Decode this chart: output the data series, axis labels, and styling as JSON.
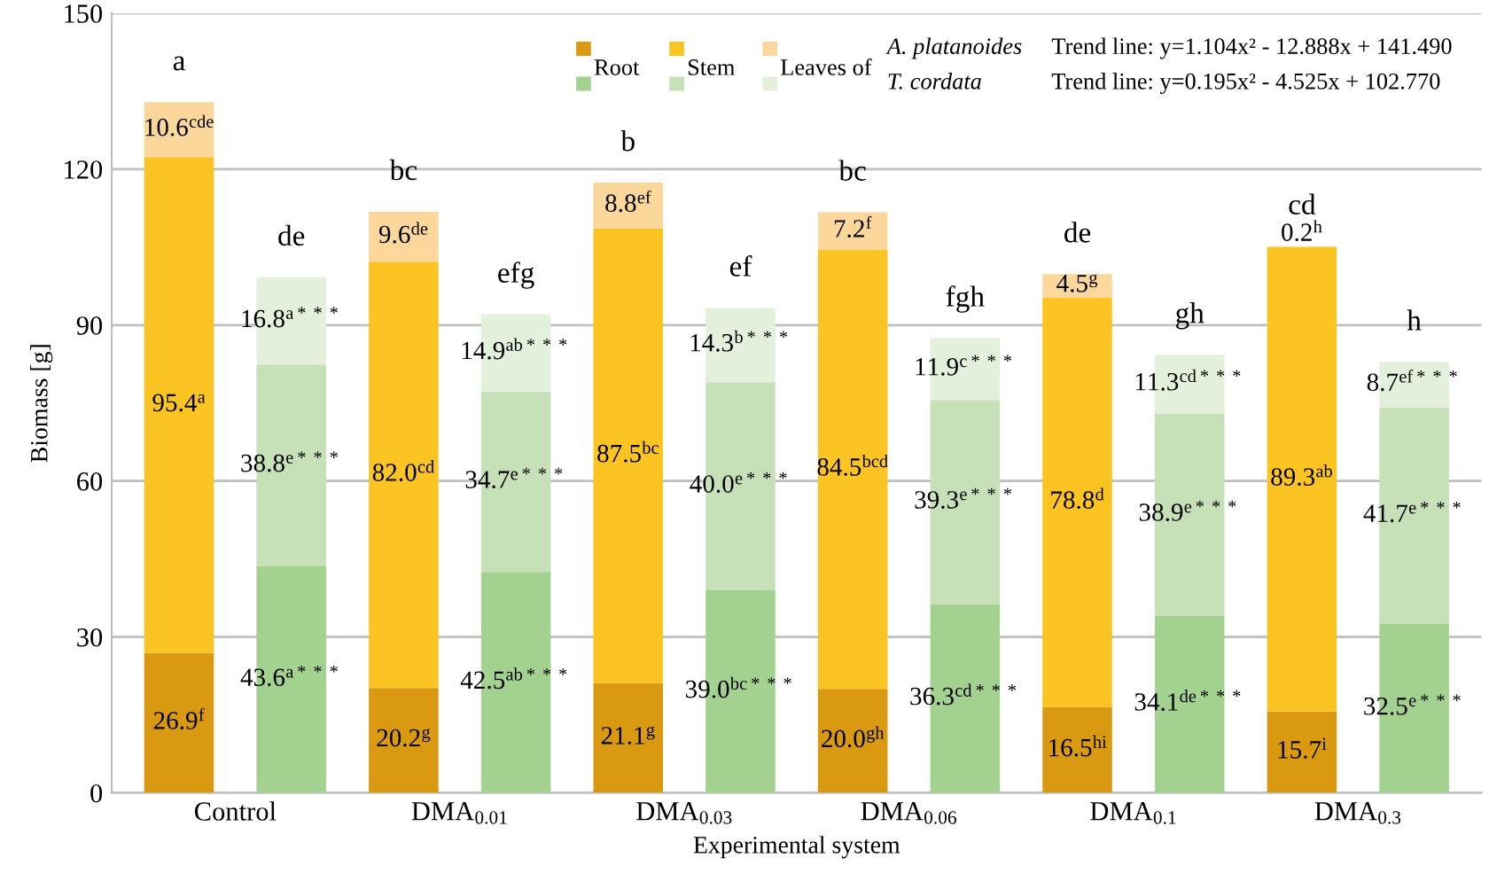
{
  "chart_data": {
    "type": "bar",
    "stacked": true,
    "xlabel": "Experimental system",
    "ylabel": "Biomass [g]",
    "categories": [
      "Control",
      null,
      "DMA$_{0.01}$",
      null,
      "DMA$_{0.03}$",
      null,
      "DMA$_{0.06}$",
      null,
      "DMA$_{0.1}$",
      null,
      "DMA$_{0.3}$",
      null
    ],
    "ylim": [
      0,
      150
    ],
    "yticks": [
      0,
      30,
      60,
      90,
      120,
      150
    ],
    "grid": "y",
    "legend": "top",
    "series": [
      {
        "name": "Root",
        "color": "#d99a12",
        "values": [
          26.9,
          null,
          20.2,
          null,
          21.1,
          null,
          20.0,
          null,
          16.5,
          null,
          15.7,
          null
        ],
        "value_labels": [
          "26.9$^{f}$",
          null,
          "20.2$^{g}$",
          null,
          "21.1$^{g}$",
          null,
          "20.0$^{gh}$",
          null,
          "16.5$^{hi}$",
          null,
          "15.7$^{i}$",
          null
        ]
      },
      {
        "name": "Stem",
        "color": "#fcc423",
        "values": [
          95.4,
          null,
          82.0,
          null,
          87.5,
          null,
          84.5,
          null,
          78.8,
          null,
          89.3,
          null
        ],
        "value_labels": [
          "95.4$^{a}$",
          null,
          "82.0$^{cd}$",
          null,
          "87.5$^{bc}$",
          null,
          "84.5$^{bcd}$",
          null,
          "78.8$^{d}$",
          null,
          "89.3$^{ab}$",
          null
        ]
      },
      {
        "name": "Leaves of",
        "color": "#fcd79c",
        "values": [
          10.6,
          null,
          9.6,
          null,
          8.8,
          null,
          7.2,
          null,
          4.5,
          null,
          0.2,
          null
        ],
        "value_labels": [
          "10.6$^{cde}$",
          null,
          "9.6$^{de}$",
          null,
          "8.8$^{ef}$",
          null,
          "7.2$^{f}$",
          null,
          "4.5$^{g}$",
          null,
          "0.2$^{h}$",
          null
        ]
      },
      {
        "color": "#a3d18f",
        "values": [
          null,
          43.6,
          null,
          42.5,
          null,
          39.0,
          null,
          36.3,
          null,
          34.1,
          null,
          32.5
        ],
        "value_labels": [
          null,
          "43.6$^{a***}$",
          null,
          "42.5$^{ab***}$",
          null,
          "39.0$^{bc***}$",
          null,
          "36.3$^{cd***}$",
          null,
          "34.1$^{de***}$",
          null,
          "32.5$^{e***}$"
        ]
      },
      {
        "color": "#c6e0b8",
        "values": [
          null,
          38.8,
          null,
          34.7,
          null,
          40.0,
          null,
          39.3,
          null,
          38.9,
          null,
          41.7
        ],
        "value_labels": [
          null,
          "38.8$^{e***}$",
          null,
          "34.7$^{e***}$",
          null,
          "40.0$^{e***}$",
          null,
          "39.3$^{e***}$",
          null,
          "38.9$^{e***}$",
          null,
          "41.7$^{e***}$"
        ]
      },
      {
        "color": "#e3f0dc",
        "values": [
          null,
          16.8,
          null,
          14.9,
          null,
          14.3,
          null,
          11.9,
          null,
          11.3,
          null,
          8.7
        ],
        "value_labels": [
          null,
          "16.8$^{a***}$",
          null,
          "14.9$^{ab***}$",
          null,
          "14.3$^{b***}$",
          null,
          "11.9$^{c***}$",
          null,
          "11.3$^{cd***}$",
          null,
          "8.7$^{ef***}$"
        ]
      }
    ],
    "totals": [
      "a",
      "de",
      "bc",
      "efg",
      "b",
      "ef",
      "bc",
      "fgh",
      "de",
      "gh",
      "cd",
      "h"
    ],
    "annotations": [
      "A. platanoides",
      "T. cordata",
      "Trend line: y=1.104x² - 12.888x + 141.490",
      "Trend line: y=0.195x² - 4.525x + 102.770"
    ]
  }
}
